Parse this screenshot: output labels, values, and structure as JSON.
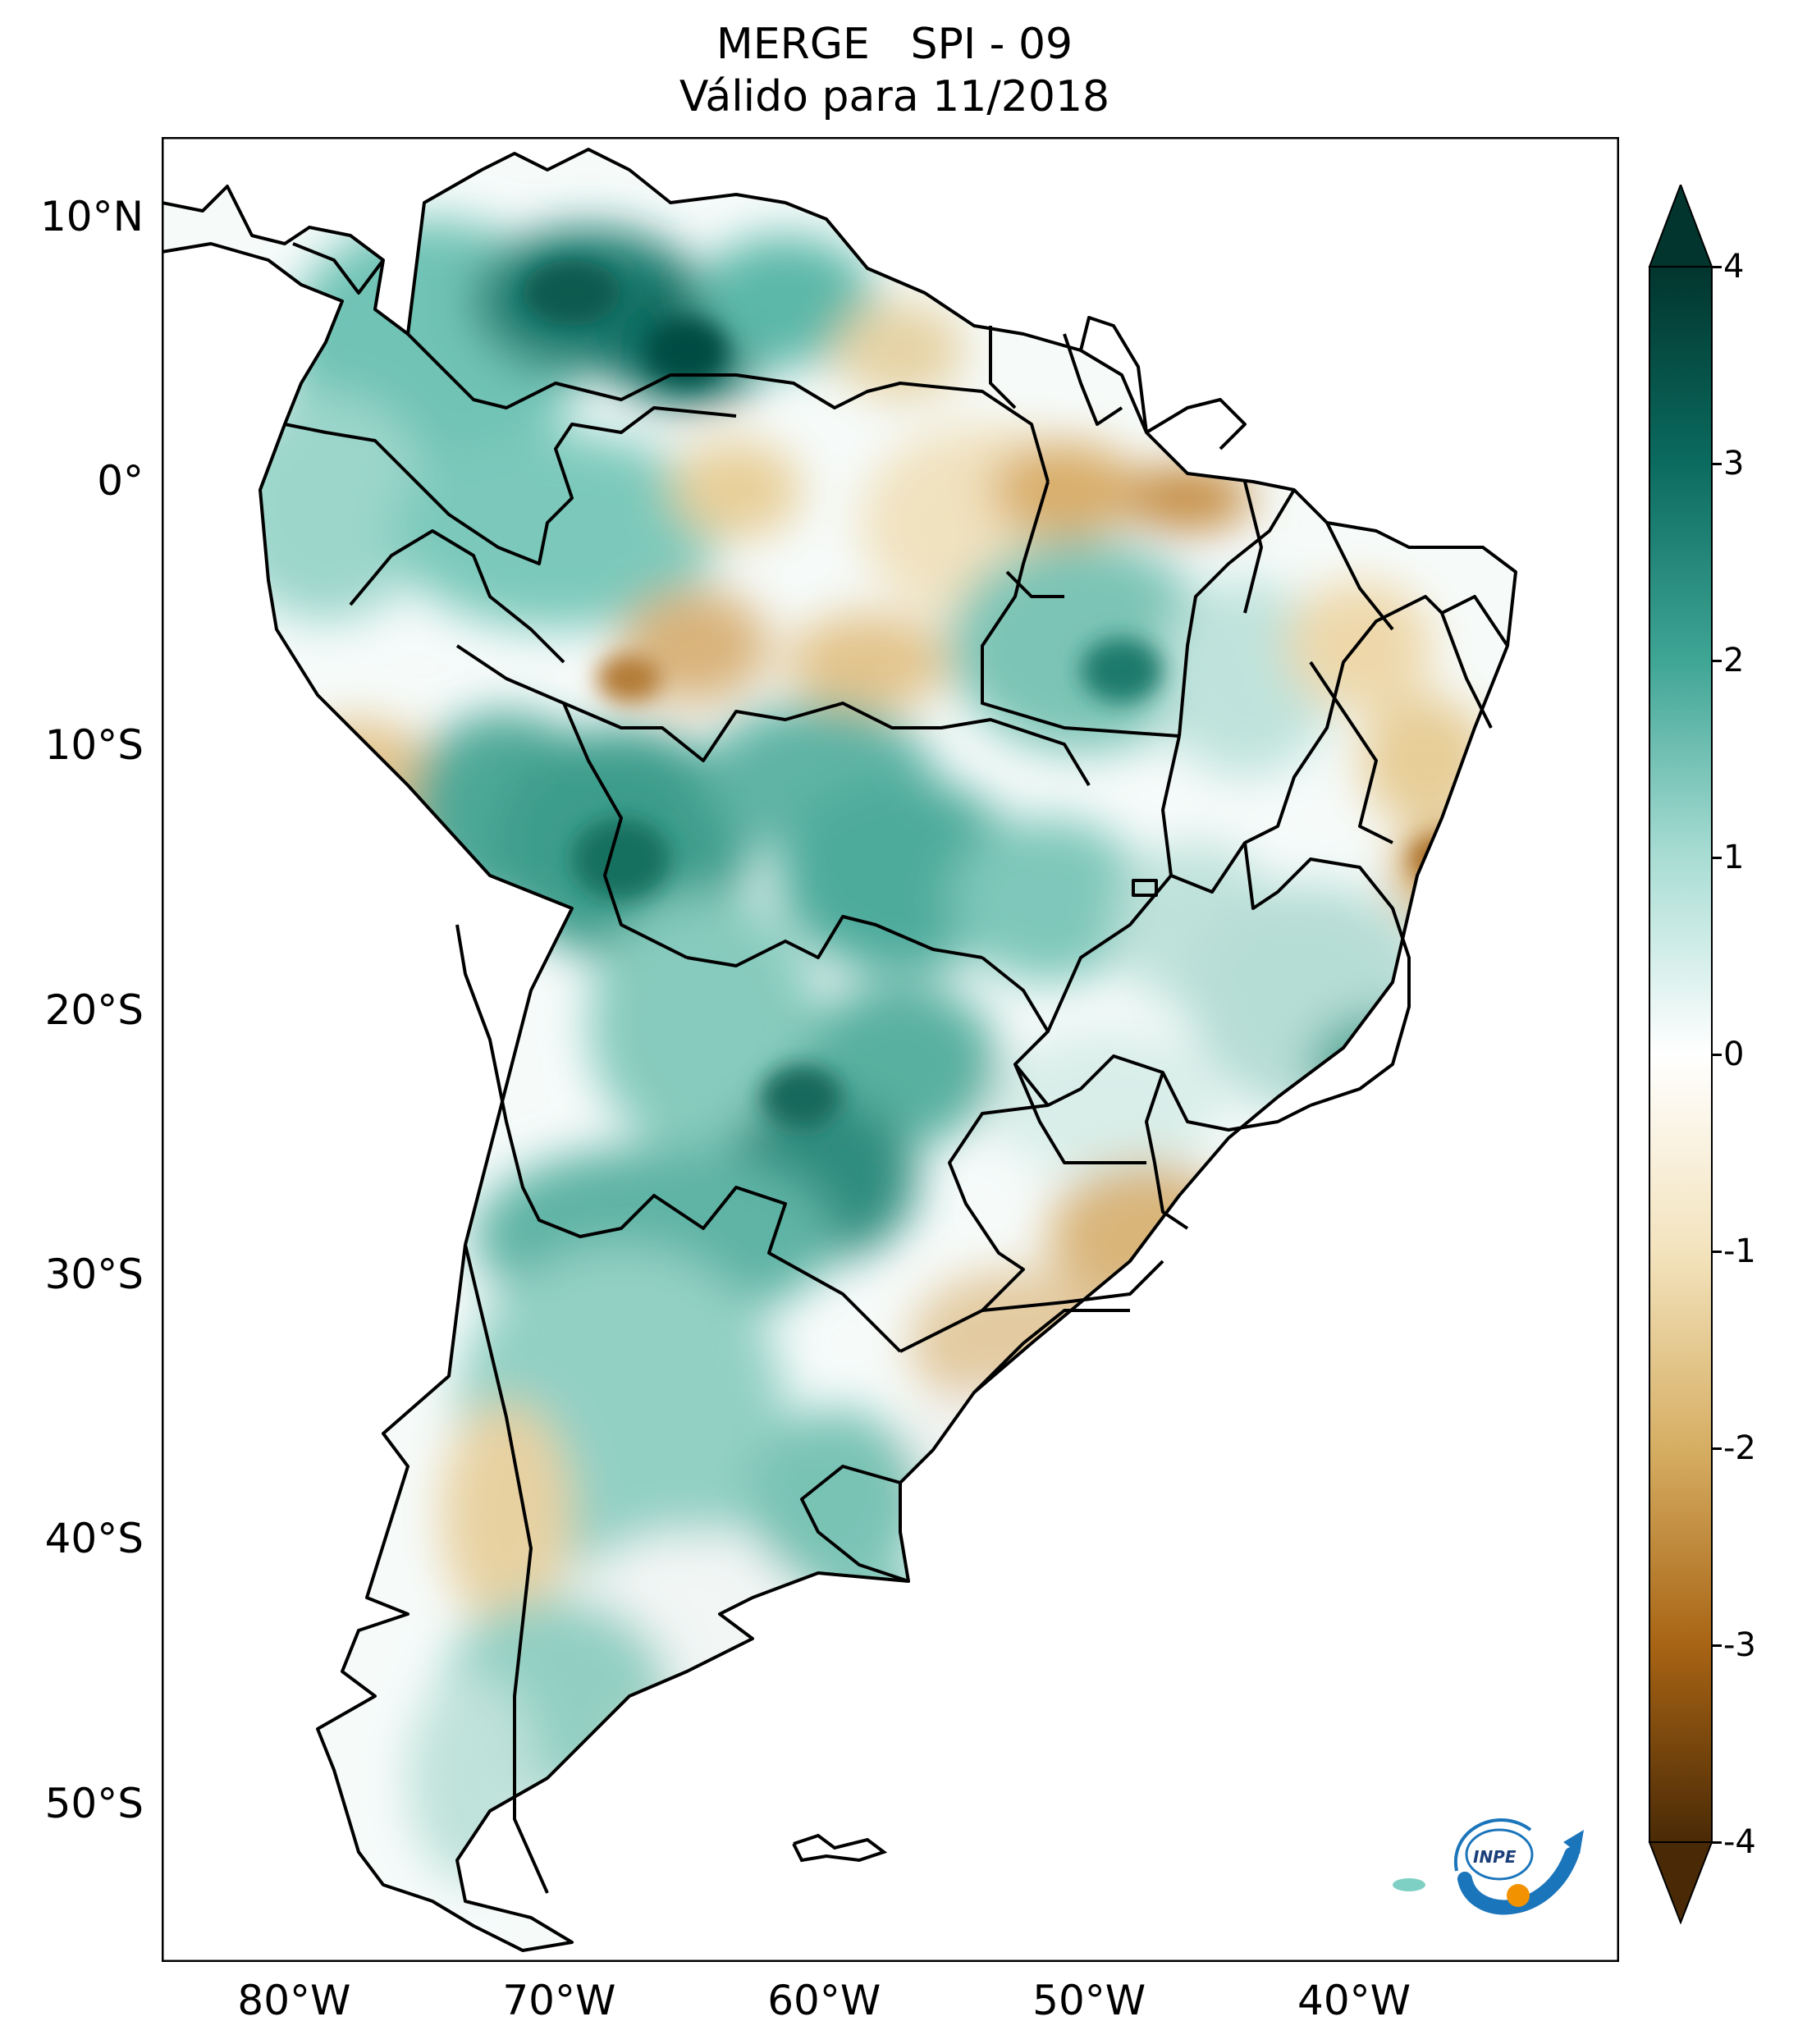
{
  "title": {
    "line1": "MERGE   SPI - 09",
    "line2": "Válido para 11/2018"
  },
  "map": {
    "lon_range": [
      -85,
      -30
    ],
    "lat_range": [
      -56,
      13
    ],
    "lat_ticks": [
      {
        "value": 10,
        "label": "10°N"
      },
      {
        "value": 0,
        "label": "0°"
      },
      {
        "value": -10,
        "label": "10°S"
      },
      {
        "value": -20,
        "label": "20°S"
      },
      {
        "value": -30,
        "label": "30°S"
      },
      {
        "value": -40,
        "label": "40°S"
      },
      {
        "value": -50,
        "label": "50°S"
      }
    ],
    "lon_ticks": [
      {
        "value": -80,
        "label": "80°W"
      },
      {
        "value": -70,
        "label": "70°W"
      },
      {
        "value": -60,
        "label": "60°W"
      },
      {
        "value": -50,
        "label": "50°W"
      },
      {
        "value": -40,
        "label": "40°W"
      }
    ]
  },
  "colorbar": {
    "range": [
      -4,
      4
    ],
    "ticks": [
      {
        "value": 4,
        "label": "4"
      },
      {
        "value": 3,
        "label": "3"
      },
      {
        "value": 2,
        "label": "2"
      },
      {
        "value": 1,
        "label": "1"
      },
      {
        "value": 0,
        "label": "0"
      },
      {
        "value": -1,
        "label": "-1"
      },
      {
        "value": -2,
        "label": "-2"
      },
      {
        "value": -3,
        "label": "-3"
      },
      {
        "value": -4,
        "label": "-4"
      }
    ],
    "colors": {
      "dark_wet": "#01352e",
      "wet_3": "#0b6b5f",
      "wet_2": "#3fa595",
      "wet_1": "#a9ddd4",
      "neutral": "#ffffff",
      "dry_1": "#f3e3bd",
      "dry_2": "#d6ae63",
      "dry_3": "#a86414",
      "dark_dry": "#4a2a06"
    }
  },
  "logo": {
    "text": "INPE"
  }
}
